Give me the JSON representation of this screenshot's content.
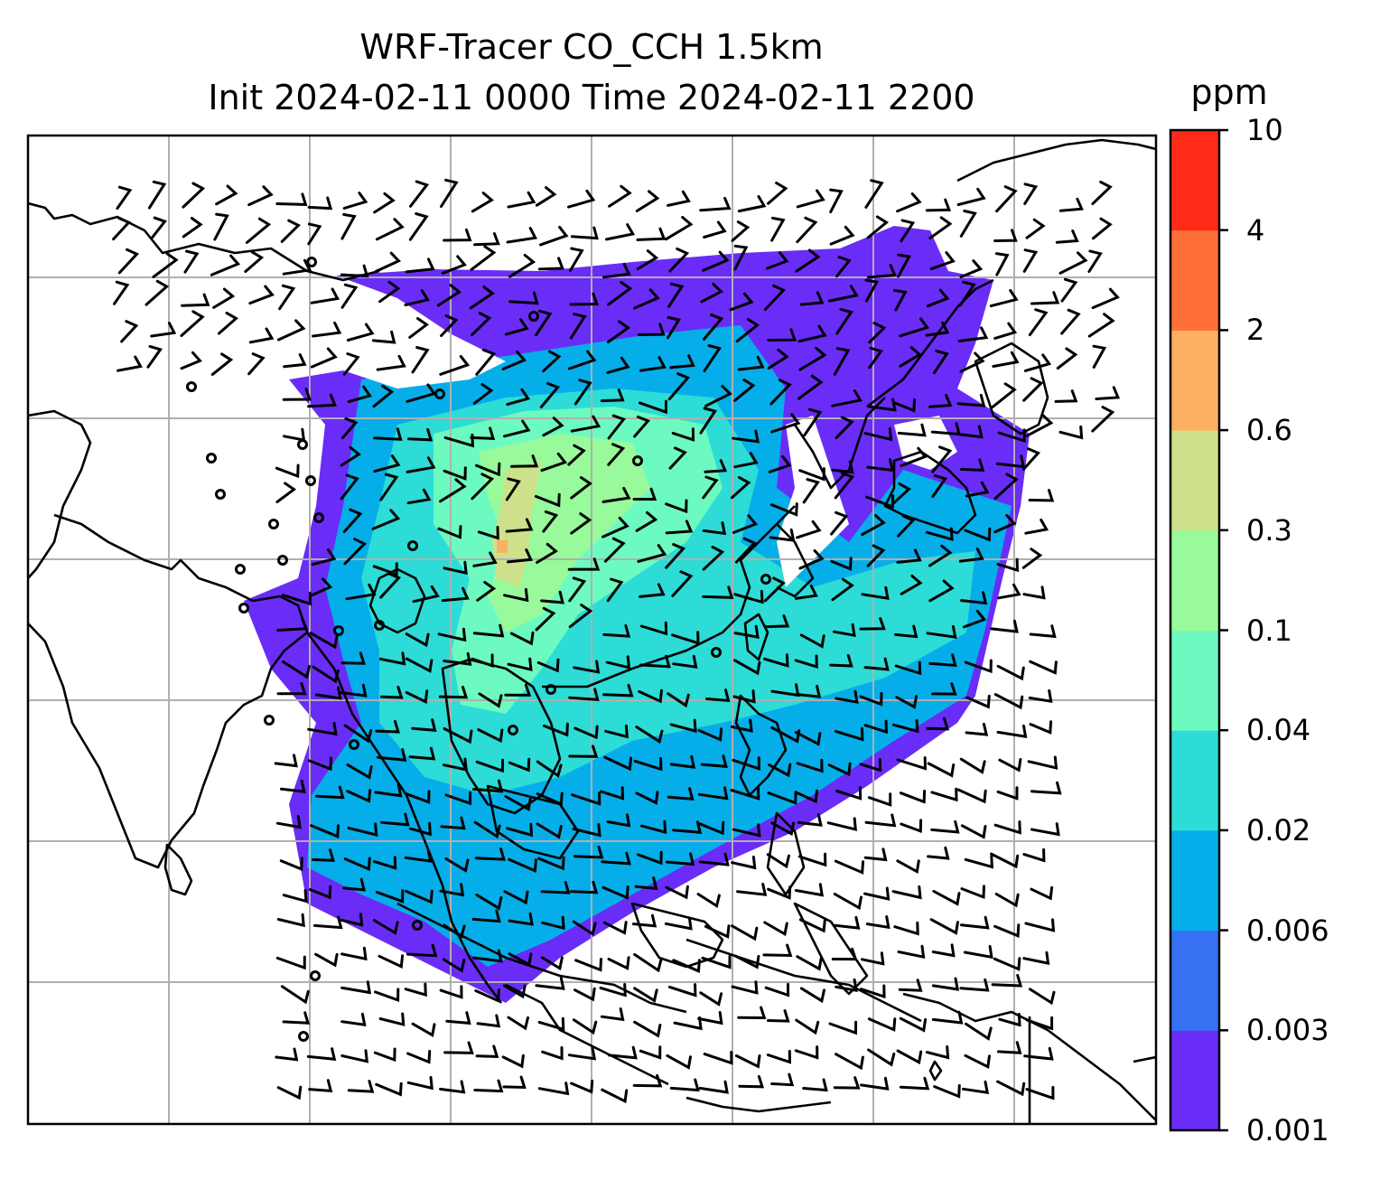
{
  "title": {
    "line1": "WRF-Tracer CO_CCH 1.5km",
    "line2": "Init 2024-02-11 0000 Time 2024-02-11 2200"
  },
  "colorbar": {
    "unit": "ppm",
    "ticks": [
      "0.001",
      "0.003",
      "0.006",
      "0.02",
      "0.04",
      "0.1",
      "0.3",
      "0.6",
      "2",
      "4",
      "10"
    ],
    "colors": [
      "#6a2cf7",
      "#3671f3",
      "#06aee9",
      "#2ddcd6",
      "#6dfac0",
      "#98fa9b",
      "#cde18a",
      "#fdaf62",
      "#ff7038",
      "#ff2b18"
    ]
  },
  "map": {
    "gridlines": true,
    "gridline_color": "#b0b0b0",
    "coastline_color": "#000000",
    "wind_barb_color": "#000000",
    "tracer_field": "CO_CCH"
  }
}
